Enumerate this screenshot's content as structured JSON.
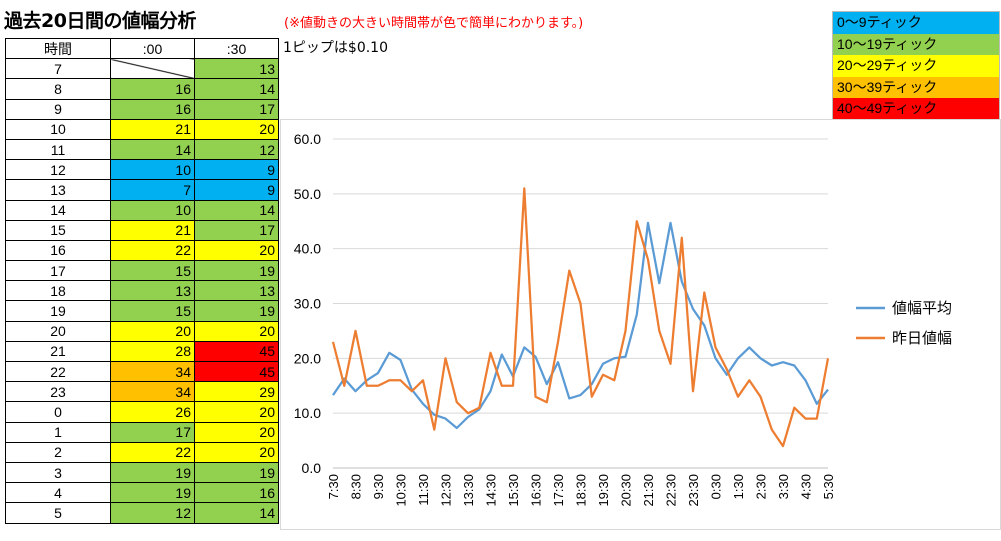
{
  "header": {
    "title": "過去20日間の値幅分析",
    "note": "(※値動きの大きい時間帯が色で簡単にわかります。)",
    "pip_note": "1ピップは$0.10"
  },
  "table": {
    "headers": [
      "時間",
      ":00",
      ":30"
    ],
    "rows": [
      {
        "hour": "7",
        "v00": "",
        "c00": "diag",
        "v30": "13",
        "c30": "green"
      },
      {
        "hour": "8",
        "v00": "16",
        "c00": "green",
        "v30": "14",
        "c30": "green"
      },
      {
        "hour": "9",
        "v00": "16",
        "c00": "green",
        "v30": "17",
        "c30": "green"
      },
      {
        "hour": "10",
        "v00": "21",
        "c00": "yellow",
        "v30": "20",
        "c30": "yellow"
      },
      {
        "hour": "11",
        "v00": "14",
        "c00": "green",
        "v30": "12",
        "c30": "green"
      },
      {
        "hour": "12",
        "v00": "10",
        "c00": "blue",
        "v30": "9",
        "c30": "blue"
      },
      {
        "hour": "13",
        "v00": "7",
        "c00": "blue",
        "v30": "9",
        "c30": "blue"
      },
      {
        "hour": "14",
        "v00": "10",
        "c00": "green",
        "v30": "14",
        "c30": "green"
      },
      {
        "hour": "15",
        "v00": "21",
        "c00": "yellow",
        "v30": "17",
        "c30": "green"
      },
      {
        "hour": "16",
        "v00": "22",
        "c00": "yellow",
        "v30": "20",
        "c30": "yellow"
      },
      {
        "hour": "17",
        "v00": "15",
        "c00": "green",
        "v30": "19",
        "c30": "green"
      },
      {
        "hour": "18",
        "v00": "13",
        "c00": "green",
        "v30": "13",
        "c30": "green"
      },
      {
        "hour": "19",
        "v00": "15",
        "c00": "green",
        "v30": "19",
        "c30": "green"
      },
      {
        "hour": "20",
        "v00": "20",
        "c00": "yellow",
        "v30": "20",
        "c30": "yellow"
      },
      {
        "hour": "21",
        "v00": "28",
        "c00": "yellow",
        "v30": "45",
        "c30": "red"
      },
      {
        "hour": "22",
        "v00": "34",
        "c00": "orange",
        "v30": "45",
        "c30": "red"
      },
      {
        "hour": "23",
        "v00": "34",
        "c00": "orange",
        "v30": "29",
        "c30": "yellow"
      },
      {
        "hour": "0",
        "v00": "26",
        "c00": "yellow",
        "v30": "20",
        "c30": "yellow"
      },
      {
        "hour": "1",
        "v00": "17",
        "c00": "green",
        "v30": "20",
        "c30": "yellow"
      },
      {
        "hour": "2",
        "v00": "22",
        "c00": "yellow",
        "v30": "20",
        "c30": "yellow"
      },
      {
        "hour": "3",
        "v00": "19",
        "c00": "green",
        "v30": "19",
        "c30": "green"
      },
      {
        "hour": "4",
        "v00": "19",
        "c00": "green",
        "v30": "16",
        "c30": "green"
      },
      {
        "hour": "5",
        "v00": "12",
        "c00": "green",
        "v30": "14",
        "c30": "green"
      }
    ]
  },
  "color_legend": [
    {
      "label": "0～9ティック",
      "color": "#00b0f0"
    },
    {
      "label": "10～19ティック",
      "color": "#92d050"
    },
    {
      "label": "20～29ティック",
      "color": "#ffff00"
    },
    {
      "label": "30～39ティック",
      "color": "#ffc000"
    },
    {
      "label": "40～49ティック",
      "color": "#ff0000"
    }
  ],
  "colors": {
    "blue": "#00b0f0",
    "green": "#92d050",
    "yellow": "#ffff00",
    "orange": "#ffc000",
    "red": "#ff0000",
    "series_avg": "#5b9bd5",
    "series_yesterday": "#ed7d31",
    "grid": "#d9d9d9"
  },
  "chart_data": {
    "type": "line",
    "title": "",
    "xlabel": "",
    "ylabel": "",
    "ylim": [
      0,
      60
    ],
    "yticks": [
      "0.0",
      "10.0",
      "20.0",
      "30.0",
      "40.0",
      "50.0",
      "60.0"
    ],
    "grid": true,
    "legend_position": "right",
    "x": [
      "7:30",
      "8:00",
      "8:30",
      "9:00",
      "9:30",
      "10:00",
      "10:30",
      "11:00",
      "11:30",
      "12:00",
      "12:30",
      "13:00",
      "13:30",
      "14:00",
      "14:30",
      "15:00",
      "15:30",
      "16:00",
      "16:30",
      "17:00",
      "17:30",
      "18:00",
      "18:30",
      "19:00",
      "19:30",
      "20:00",
      "20:30",
      "21:00",
      "21:30",
      "22:00",
      "22:30",
      "23:00",
      "23:30",
      "0:00",
      "0:30",
      "1:00",
      "1:30",
      "2:00",
      "2:30",
      "3:00",
      "3:30",
      "4:00",
      "4:30",
      "5:00",
      "5:30"
    ],
    "x_tick_labels": [
      "7:30",
      "8:30",
      "9:30",
      "10:30",
      "11:30",
      "12:30",
      "13:30",
      "14:30",
      "15:30",
      "16:30",
      "17:30",
      "18:30",
      "19:30",
      "20:30",
      "21:30",
      "22:30",
      "23:30",
      "0:30",
      "1:30",
      "2:30",
      "3:30",
      "4:30",
      "5:30"
    ],
    "series": [
      {
        "name": "値幅平均",
        "values": [
          13.3,
          16.3,
          14.0,
          16.0,
          17.3,
          21.0,
          19.7,
          14.3,
          11.7,
          9.7,
          9.0,
          7.3,
          9.3,
          10.7,
          14.0,
          20.7,
          16.7,
          22.0,
          20.3,
          15.3,
          19.3,
          12.7,
          13.3,
          15.3,
          19.0,
          20.0,
          20.3,
          28.0,
          44.7,
          33.7,
          44.7,
          34.0,
          29.0,
          26.0,
          20.0,
          17.0,
          20.0,
          22.0,
          20.0,
          18.7,
          19.3,
          18.7,
          16.0,
          11.7,
          14.3
        ]
      },
      {
        "name": "昨日値幅",
        "values": [
          23,
          15,
          25,
          15,
          15,
          16,
          16,
          14,
          16,
          7,
          20,
          12,
          10,
          11,
          21,
          15,
          15,
          51,
          13,
          12,
          23,
          36,
          30,
          13,
          17,
          16,
          25,
          45,
          38,
          25,
          19,
          42,
          14,
          32,
          22,
          18,
          13,
          16,
          13,
          7,
          4,
          11,
          9,
          9,
          20
        ]
      }
    ]
  }
}
